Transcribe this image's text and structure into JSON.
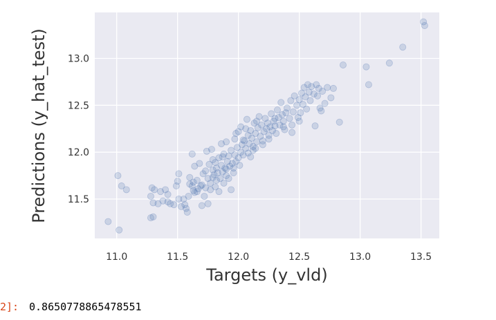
{
  "output": {
    "prompt": "2]:",
    "value": "0.8650778865478551"
  },
  "chart_data": {
    "type": "scatter",
    "xlabel": "Targets (y_vld)",
    "ylabel": "Predictions (y_hat_test)",
    "xlim": [
      10.82,
      13.65
    ],
    "ylim": [
      11.08,
      13.49
    ],
    "xticks": [
      11.0,
      11.5,
      12.0,
      12.5,
      13.0,
      13.5
    ],
    "xtick_labels": [
      "11.0",
      "11.5",
      "12.0",
      "12.5",
      "13.0",
      "13.5"
    ],
    "yticks": [
      11.5,
      12.0,
      12.5,
      13.0
    ],
    "ytick_labels": [
      "11.5",
      "12.0",
      "12.5",
      "13.0"
    ],
    "grid": true,
    "background": "#eaeaf2",
    "point_color": "#4c72b0",
    "point_alpha": 0.2,
    "points": [
      [
        10.93,
        11.26
      ],
      [
        11.02,
        11.17
      ],
      [
        11.01,
        11.75
      ],
      [
        11.04,
        11.64
      ],
      [
        11.08,
        11.6
      ],
      [
        11.28,
        11.3
      ],
      [
        11.3,
        11.31
      ],
      [
        11.28,
        11.53
      ],
      [
        11.29,
        11.62
      ],
      [
        11.31,
        11.6
      ],
      [
        11.3,
        11.46
      ],
      [
        11.34,
        11.45
      ],
      [
        11.36,
        11.58
      ],
      [
        11.38,
        11.48
      ],
      [
        11.4,
        11.6
      ],
      [
        11.42,
        11.47
      ],
      [
        11.42,
        11.55
      ],
      [
        11.44,
        11.45
      ],
      [
        11.47,
        11.44
      ],
      [
        11.49,
        11.64
      ],
      [
        11.5,
        11.69
      ],
      [
        11.51,
        11.77
      ],
      [
        11.51,
        11.5
      ],
      [
        11.53,
        11.42
      ],
      [
        11.55,
        11.5
      ],
      [
        11.56,
        11.44
      ],
      [
        11.57,
        11.4
      ],
      [
        11.58,
        11.36
      ],
      [
        11.59,
        11.53
      ],
      [
        11.6,
        11.66
      ],
      [
        11.6,
        11.73
      ],
      [
        11.62,
        11.64
      ],
      [
        11.62,
        11.98
      ],
      [
        11.63,
        11.59
      ],
      [
        11.64,
        11.57
      ],
      [
        11.64,
        11.85
      ],
      [
        11.66,
        11.7
      ],
      [
        11.67,
        11.61
      ],
      [
        11.68,
        11.88
      ],
      [
        11.69,
        11.64
      ],
      [
        11.7,
        11.43
      ],
      [
        11.71,
        11.77
      ],
      [
        11.72,
        11.53
      ],
      [
        11.73,
        11.62
      ],
      [
        11.73,
        11.8
      ],
      [
        11.74,
        12.01
      ],
      [
        11.75,
        11.72
      ],
      [
        11.75,
        11.45
      ],
      [
        11.76,
        11.87
      ],
      [
        11.77,
        11.67
      ],
      [
        11.77,
        11.6
      ],
      [
        11.78,
        12.03
      ],
      [
        11.79,
        11.73
      ],
      [
        11.79,
        11.81
      ],
      [
        11.8,
        11.76
      ],
      [
        11.81,
        11.63
      ],
      [
        11.81,
        11.89
      ],
      [
        11.82,
        11.7
      ],
      [
        11.82,
        11.83
      ],
      [
        11.83,
        11.78
      ],
      [
        11.84,
        11.58
      ],
      [
        11.84,
        11.94
      ],
      [
        11.85,
        11.72
      ],
      [
        11.86,
        11.86
      ],
      [
        11.86,
        12.09
      ],
      [
        11.87,
        11.79
      ],
      [
        11.88,
        11.67
      ],
      [
        11.88,
        11.98
      ],
      [
        11.89,
        11.83
      ],
      [
        11.9,
        11.75
      ],
      [
        11.9,
        12.11
      ],
      [
        11.91,
        11.9
      ],
      [
        11.92,
        11.72
      ],
      [
        11.92,
        11.96
      ],
      [
        11.93,
        11.85
      ],
      [
        11.94,
        12.02
      ],
      [
        11.94,
        11.6
      ],
      [
        11.95,
        11.88
      ],
      [
        11.96,
        11.78
      ],
      [
        11.97,
        11.97
      ],
      [
        11.97,
        12.14
      ],
      [
        11.98,
        11.9
      ],
      [
        11.99,
        12.05
      ],
      [
        12.0,
        11.94
      ],
      [
        12.0,
        12.22
      ],
      [
        12.01,
        11.86
      ],
      [
        12.02,
        12.0
      ],
      [
        12.02,
        12.27
      ],
      [
        12.03,
        12.08
      ],
      [
        12.04,
        11.97
      ],
      [
        12.05,
        12.12
      ],
      [
        12.06,
        12.04
      ],
      [
        12.07,
        12.35
      ],
      [
        12.08,
        12.18
      ],
      [
        12.09,
        12.09
      ],
      [
        12.1,
        11.95
      ],
      [
        12.1,
        12.23
      ],
      [
        12.11,
        12.15
      ],
      [
        12.12,
        12.06
      ],
      [
        12.13,
        12.31
      ],
      [
        12.14,
        12.2
      ],
      [
        12.15,
        12.11
      ],
      [
        12.16,
        12.26
      ],
      [
        12.17,
        12.38
      ],
      [
        12.18,
        12.17
      ],
      [
        12.19,
        12.29
      ],
      [
        12.2,
        12.08
      ],
      [
        12.21,
        12.22
      ],
      [
        12.22,
        12.36
      ],
      [
        12.23,
        12.25
      ],
      [
        12.24,
        12.31
      ],
      [
        12.25,
        12.18
      ],
      [
        12.26,
        12.27
      ],
      [
        12.27,
        12.41
      ],
      [
        12.28,
        12.23
      ],
      [
        12.29,
        12.33
      ],
      [
        12.3,
        12.28
      ],
      [
        12.31,
        12.2
      ],
      [
        12.32,
        12.45
      ],
      [
        12.33,
        12.37
      ],
      [
        12.34,
        12.29
      ],
      [
        12.35,
        12.53
      ],
      [
        12.36,
        12.4
      ],
      [
        12.37,
        12.33
      ],
      [
        12.38,
        12.24
      ],
      [
        12.39,
        12.42
      ],
      [
        12.4,
        12.47
      ],
      [
        12.42,
        12.36
      ],
      [
        12.43,
        12.55
      ],
      [
        12.44,
        12.29
      ],
      [
        12.45,
        12.43
      ],
      [
        12.46,
        12.6
      ],
      [
        12.48,
        12.5
      ],
      [
        12.49,
        12.37
      ],
      [
        12.5,
        12.56
      ],
      [
        12.51,
        12.42
      ],
      [
        12.52,
        12.63
      ],
      [
        12.53,
        12.51
      ],
      [
        12.54,
        12.69
      ],
      [
        12.55,
        12.59
      ],
      [
        12.56,
        12.46
      ],
      [
        12.57,
        12.72
      ],
      [
        12.58,
        12.64
      ],
      [
        12.59,
        12.55
      ],
      [
        12.6,
        12.7
      ],
      [
        12.62,
        12.62
      ],
      [
        12.63,
        12.28
      ],
      [
        12.64,
        12.72
      ],
      [
        12.65,
        12.6
      ],
      [
        12.66,
        12.68
      ],
      [
        12.67,
        12.47
      ],
      [
        12.68,
        12.44
      ],
      [
        12.69,
        12.65
      ],
      [
        12.71,
        12.52
      ],
      [
        12.73,
        12.69
      ],
      [
        12.76,
        12.58
      ],
      [
        12.78,
        12.68
      ],
      [
        12.83,
        12.32
      ],
      [
        12.86,
        12.93
      ],
      [
        13.05,
        12.91
      ],
      [
        13.07,
        12.72
      ],
      [
        13.24,
        12.95
      ],
      [
        13.35,
        13.12
      ],
      [
        13.52,
        13.39
      ],
      [
        13.53,
        13.35
      ],
      [
        12.2,
        12.12
      ],
      [
        12.12,
        12.02
      ],
      [
        11.96,
        11.83
      ],
      [
        11.9,
        11.82
      ],
      [
        12.04,
        12.13
      ],
      [
        12.25,
        12.14
      ],
      [
        11.7,
        11.65
      ],
      [
        11.66,
        11.58
      ],
      [
        12.08,
        11.99
      ],
      [
        12.3,
        12.36
      ],
      [
        12.44,
        12.21
      ],
      [
        12.15,
        12.33
      ],
      [
        11.98,
        12.2
      ],
      [
        11.87,
        11.95
      ],
      [
        11.79,
        11.92
      ],
      [
        12.37,
        12.27
      ],
      [
        12.5,
        12.33
      ],
      [
        12.06,
        12.25
      ],
      [
        11.63,
        11.68
      ],
      [
        12.14,
        12.04
      ]
    ]
  }
}
